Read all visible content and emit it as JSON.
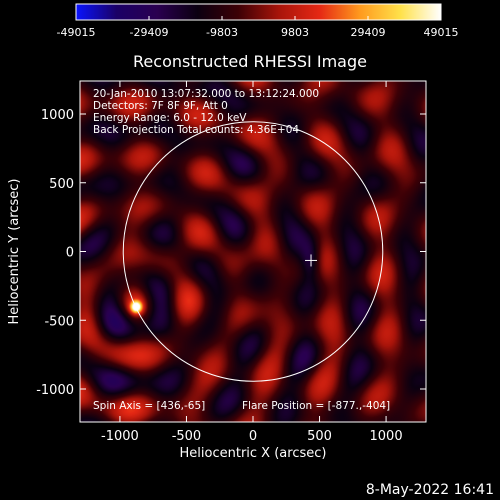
{
  "title": "Reconstructed RHESSI Image",
  "info_lines": [
    "20-Jan-2010 13:07:32.000 to 13:12:24.000",
    "Detectors: 7F 8F 9F, Att 0",
    "Energy Range: 6.0 - 12.0 keV",
    "Back Projection    Total counts: 4.36E+04"
  ],
  "footer": {
    "spin_axis": "Spin Axis = [436,-65]",
    "flare_position": "Flare Position = [-877.,-404]"
  },
  "timestamp": "8-May-2022 16:41",
  "colors": {
    "background": "#000000",
    "foreground": "#ffffff",
    "colormap": [
      "#0a14ff",
      "#1a0066",
      "#2a0050",
      "#0b0011",
      "#3c0006",
      "#a8140a",
      "#e52814",
      "#ff9a1e",
      "#ffe14a",
      "#ffffff"
    ]
  },
  "chart_data": {
    "type": "heatmap",
    "title": "Reconstructed RHESSI Image",
    "xlabel": "Heliocentric X (arcsec)",
    "ylabel": "Heliocentric Y (arcsec)",
    "xlim": [
      -1300,
      1300
    ],
    "ylim": [
      -1240,
      1240
    ],
    "xticks": [
      -1000,
      -500,
      0,
      500,
      1000
    ],
    "yticks": [
      -1000,
      -500,
      0,
      500,
      1000
    ],
    "colorbar": {
      "range": [
        -49015,
        49015
      ],
      "ticks": [
        -49015,
        -29409,
        -9803,
        9803,
        29409,
        49015
      ]
    },
    "solar_limb_radius_arcsec": 975,
    "source_peak": {
      "x": -877,
      "y": -404
    },
    "spin_axis": [
      436,
      -65
    ],
    "flare_position": [
      -877,
      -404
    ]
  }
}
